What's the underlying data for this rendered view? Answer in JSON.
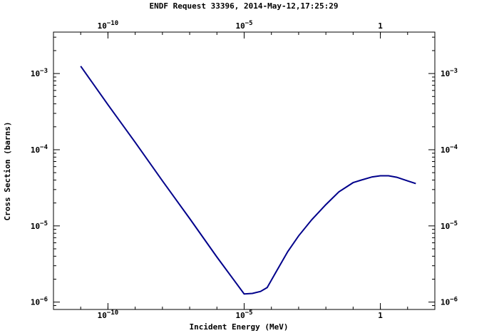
{
  "chart_data": {
    "type": "line",
    "title": "ENDF Request 33396, 2014-May-12,17:25:29",
    "xlabel": "Incident Energy (MeV)",
    "ylabel": "Cross Section (barns)",
    "x_scale": "log",
    "y_scale": "log",
    "xlim": [
      1e-12,
      100
    ],
    "ylim": [
      8e-07,
      0.0035
    ],
    "x_ticks": [
      {
        "value": 1e-10,
        "base": "10",
        "exp": "−10"
      },
      {
        "value": 1e-05,
        "base": "10",
        "exp": "−5"
      },
      {
        "value": 1,
        "base": "1",
        "exp": ""
      }
    ],
    "y_ticks": [
      {
        "value": 0.001,
        "base": "10",
        "exp": "−3"
      },
      {
        "value": 0.0001,
        "base": "10",
        "exp": "−4"
      },
      {
        "value": 1e-05,
        "base": "10",
        "exp": "−5"
      },
      {
        "value": 1e-06,
        "base": "10",
        "exp": "−6"
      }
    ],
    "grid": false,
    "line_color": "#00008b",
    "series": [
      {
        "x": [
          1e-11,
          1e-10,
          1e-09,
          1e-08,
          1e-07,
          1e-06,
          1e-05,
          2e-05,
          4e-05,
          7e-05,
          0.00015,
          0.0004,
          0.001,
          0.003,
          0.01,
          0.03,
          0.1,
          0.2,
          0.5,
          1,
          2,
          4,
          10,
          20
        ],
        "y": [
          0.00125,
          0.00039,
          0.000125,
          3.9e-05,
          1.25e-05,
          3.9e-06,
          1.28e-06,
          1.3e-06,
          1.38e-06,
          1.55e-06,
          2.5e-06,
          4.6e-06,
          7.4e-06,
          1.2e-05,
          1.9e-05,
          2.8e-05,
          3.7e-05,
          4e-05,
          4.4e-05,
          4.55e-05,
          4.55e-05,
          4.35e-05,
          3.9e-05,
          3.6e-05
        ]
      }
    ]
  }
}
